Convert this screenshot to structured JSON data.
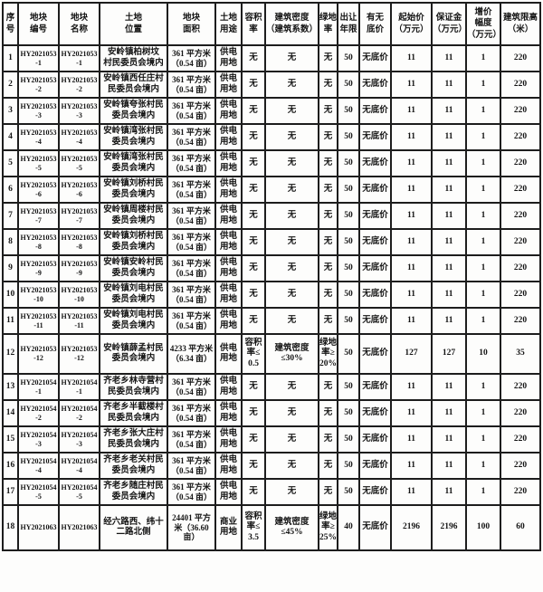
{
  "table": {
    "columns": [
      "序\n号",
      "地块\n编号",
      "地块\n名称",
      "土地\n位置",
      "地块\n面积",
      "土地\n用途",
      "容积\n率",
      "建筑密度\n（建筑系数）",
      "绿地\n率",
      "出让\n年限",
      "有无\n底价",
      "起始价\n（万元）",
      "保证金\n（万元）",
      "增价\n幅度\n（万元）",
      "建筑限高\n（米）"
    ],
    "rows": [
      [
        "1",
        "HY2021053\n-1",
        "HY2021053\n-1",
        "安岭镇柏树坟\n村民委员会境内",
        "361 平方米\n（0.54 亩）",
        "供电\n用地",
        "无",
        "无",
        "无",
        "50",
        "无底价",
        "11",
        "11",
        "1",
        "220"
      ],
      [
        "2",
        "HY2021053\n-2",
        "HY2021053\n-2",
        "安岭镇西任庄村\n民委员会境内",
        "361 平方米\n（0.54 亩）",
        "供电\n用地",
        "无",
        "无",
        "无",
        "50",
        "无底价",
        "11",
        "11",
        "1",
        "220"
      ],
      [
        "3",
        "HY2021053\n-3",
        "HY2021053\n-3",
        "安岭镇夸张村民\n委员会境内",
        "361 平方米\n（0.54 亩）",
        "供电\n用地",
        "无",
        "无",
        "无",
        "50",
        "无底价",
        "11",
        "11",
        "1",
        "220"
      ],
      [
        "4",
        "HY2021053\n-4",
        "HY2021053\n-4",
        "安岭镇湾张村民\n委员会境内",
        "361 平方米\n（0.54 亩）",
        "供电\n用地",
        "无",
        "无",
        "无",
        "50",
        "无底价",
        "11",
        "11",
        "1",
        "220"
      ],
      [
        "5",
        "HY2021053\n-5",
        "HY2021053\n-5",
        "安岭镇湾张村民\n委员会境内",
        "361 平方米\n（0.54 亩）",
        "供电\n用地",
        "无",
        "无",
        "无",
        "50",
        "无底价",
        "11",
        "11",
        "1",
        "220"
      ],
      [
        "6",
        "HY2021053\n-6",
        "HY2021053\n-6",
        "安岭镇刘桥村民\n委员会境内",
        "361 平方米\n（0.54 亩）",
        "供电\n用地",
        "无",
        "无",
        "无",
        "50",
        "无底价",
        "11",
        "11",
        "1",
        "220"
      ],
      [
        "7",
        "HY2021053\n-7",
        "HY2021053\n-7",
        "安岭镇周楼村民\n委员会境内",
        "361 平方米\n（0.54 亩）",
        "供电\n用地",
        "无",
        "无",
        "无",
        "50",
        "无底价",
        "11",
        "11",
        "1",
        "220"
      ],
      [
        "8",
        "HY2021053\n-8",
        "HY2021053\n-8",
        "安岭镇刘桥村民\n委员会境内",
        "361 平方米\n（0.54 亩）",
        "供电\n用地",
        "无",
        "无",
        "无",
        "50",
        "无底价",
        "11",
        "11",
        "1",
        "220"
      ],
      [
        "9",
        "HY2021053\n-9",
        "HY2021053\n-9",
        "安岭镇安岭村民\n委员会境内",
        "361 平方米\n（0.54 亩）",
        "供电\n用地",
        "无",
        "无",
        "无",
        "50",
        "无底价",
        "11",
        "11",
        "1",
        "220"
      ],
      [
        "10",
        "HY2021053\n-10",
        "HY2021053\n-10",
        "安岭镇刘电村民\n委员会境内",
        "361 平方米\n（0.54 亩）",
        "供电\n用地",
        "无",
        "无",
        "无",
        "50",
        "无底价",
        "11",
        "11",
        "1",
        "220"
      ],
      [
        "11",
        "HY2021053\n-11",
        "HY2021053\n-11",
        "安岭镇刘电村民\n委员会境内",
        "361 平方米\n（0.54 亩）",
        "供电\n用地",
        "无",
        "无",
        "无",
        "50",
        "无底价",
        "11",
        "11",
        "1",
        "220"
      ],
      [
        "12",
        "HY2021053\n-12",
        "HY2021053\n-12",
        "安岭镇薛孟村民\n委员会境内",
        "4233 平方米\n（6.34 亩）",
        "供电\n用地",
        "容积\n率≤\n0.5",
        "建筑密度\n≤30%",
        "绿地\n率≥\n20%",
        "50",
        "无底价",
        "127",
        "127",
        "10",
        "35"
      ],
      [
        "13",
        "HY2021054\n-1",
        "HY2021054\n-1",
        "齐老乡林寺营村\n民委员会境内",
        "361 平方米\n（0.54 亩）",
        "供电\n用地",
        "无",
        "无",
        "无",
        "50",
        "无底价",
        "11",
        "11",
        "1",
        "220"
      ],
      [
        "14",
        "HY2021054\n-2",
        "HY2021054\n-2",
        "齐老乡半截楼村\n民委员会境内",
        "361 平方米\n（0.54 亩）",
        "供电\n用地",
        "无",
        "无",
        "无",
        "50",
        "无底价",
        "11",
        "11",
        "1",
        "220"
      ],
      [
        "15",
        "HY2021054\n-3",
        "HY2021054\n-3",
        "齐老乡张大庄村\n民委员会境内",
        "361 平方米\n（0.54 亩）",
        "供电\n用地",
        "无",
        "无",
        "无",
        "50",
        "无底价",
        "11",
        "11",
        "1",
        "220"
      ],
      [
        "16",
        "HY2021054\n-4",
        "HY2021054\n-4",
        "齐老乡老关村民\n委员会境内",
        "361 平方米\n（0.54 亩）",
        "供电\n用地",
        "无",
        "无",
        "无",
        "50",
        "无底价",
        "11",
        "11",
        "1",
        "220"
      ],
      [
        "17",
        "HY2021054\n-5",
        "HY2021054\n-5",
        "齐老乡随庄村民\n委员会境内",
        "361 平方米\n（0.54 亩）",
        "供电\n用地",
        "无",
        "无",
        "无",
        "50",
        "无底价",
        "11",
        "11",
        "1",
        "220"
      ],
      [
        "18",
        "HY2021063",
        "HY2021063",
        "经六路西、纬十\n二路北侧",
        "24401 平方\n米（36.60\n亩）",
        "商业\n用地",
        "容积\n率≤\n3.5",
        "建筑密度\n≤45%",
        "绿地\n率≥\n25%",
        "40",
        "无底价",
        "2196",
        "2196",
        "100",
        "60"
      ]
    ]
  }
}
